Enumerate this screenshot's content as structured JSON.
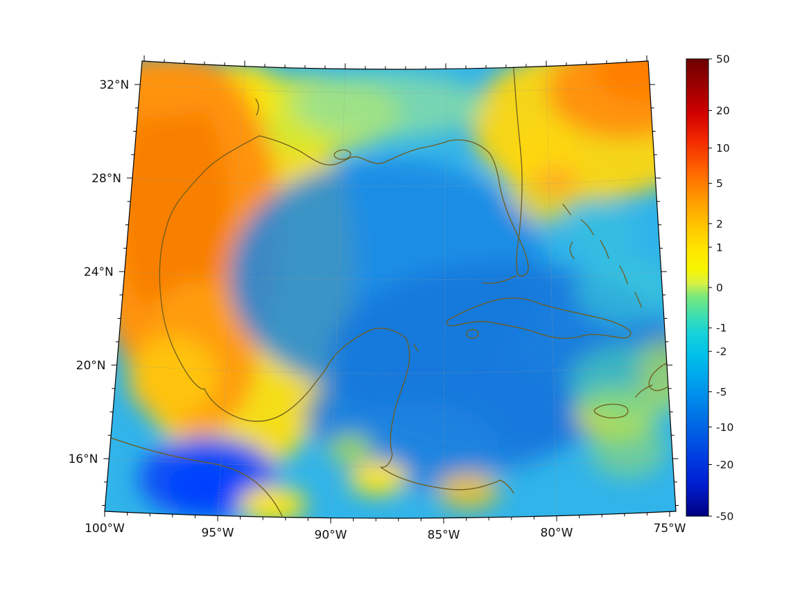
{
  "chart_data": {
    "type": "heatmap",
    "title": "",
    "xlabel": "",
    "ylabel": "",
    "grid": true,
    "legend": false,
    "x_ticks": [
      {
        "value": 100,
        "label": "100°W"
      },
      {
        "value": 95,
        "label": "95°W"
      },
      {
        "value": 90,
        "label": "90°W"
      },
      {
        "value": 85,
        "label": "85°W"
      },
      {
        "value": 80,
        "label": "80°W"
      },
      {
        "value": 75,
        "label": "75°W"
      }
    ],
    "y_ticks": [
      {
        "value": 32,
        "label": "32°N"
      },
      {
        "value": 28,
        "label": "28°N"
      },
      {
        "value": 24,
        "label": "24°N"
      },
      {
        "value": 20,
        "label": "20°N"
      },
      {
        "value": 16,
        "label": "16°N"
      }
    ],
    "colorbar": {
      "vmin": -50,
      "vmax": 50,
      "scale": "symlog",
      "colormap_style": "jet-like (dark red → red → orange → yellow → green → cyan → blue → dark blue)",
      "ticks": [
        {
          "value": 50,
          "label": "50"
        },
        {
          "value": 20,
          "label": "20"
        },
        {
          "value": 10,
          "label": "10"
        },
        {
          "value": 5,
          "label": "5"
        },
        {
          "value": 2,
          "label": "2"
        },
        {
          "value": 1,
          "label": "1"
        },
        {
          "value": 0,
          "label": "0"
        },
        {
          "value": -1,
          "label": "-1"
        },
        {
          "value": -2,
          "label": "-2"
        },
        {
          "value": -5,
          "label": "-5"
        },
        {
          "value": -10,
          "label": "-10"
        },
        {
          "value": -20,
          "label": "-20"
        },
        {
          "value": -50,
          "label": "-50"
        }
      ]
    },
    "map_extent": {
      "lon_west_deg_W": 100,
      "lon_east_deg_W": 75,
      "lat_south_deg_N": 14,
      "lat_north_deg_N": 33
    },
    "sample_grid": {
      "note": "approximate field values read from colors at grid points",
      "lons_deg_W": [
        97.5,
        92.5,
        87.5,
        82.5,
        77.5
      ],
      "lats_deg_N": [
        31,
        27,
        23,
        19,
        15
      ],
      "values": [
        [
          3,
          1.5,
          -0.5,
          3,
          5
        ],
        [
          5,
          1,
          -4,
          -3,
          -2
        ],
        [
          4,
          0,
          -4,
          -5,
          -3
        ],
        [
          3,
          -2,
          -5,
          -5,
          -2
        ],
        [
          -8,
          0,
          -3,
          -4,
          1
        ]
      ]
    },
    "features": [
      "Gulf of Mexico coastline",
      "Florida peninsula",
      "Yucatan peninsula",
      "Cuba",
      "Jamaica",
      "Hispaniola (partial)",
      "Bahamas",
      "Pacific coast of Central America"
    ]
  },
  "colors": {
    "coastline": "#6f5c1c",
    "gridline": "#999999",
    "axis": "#000000",
    "background": "#ffffff"
  }
}
